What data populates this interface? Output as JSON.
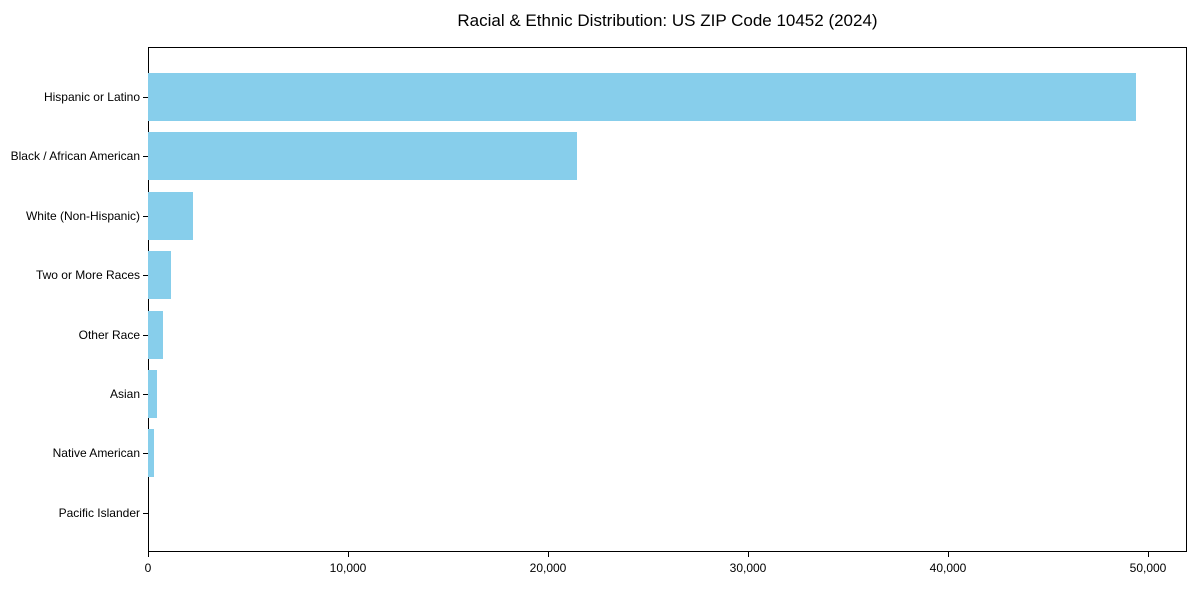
{
  "title": "Racial & Ethnic Distribution: US ZIP Code 10452 (2024)",
  "chart_data": {
    "type": "bar",
    "orientation": "horizontal",
    "title": "Racial & Ethnic Distribution: US ZIP Code 10452 (2024)",
    "xlabel": "",
    "ylabel": "",
    "categories": [
      "Hispanic or Latino",
      "Black / African American",
      "White (Non-Hispanic)",
      "Two or More Races",
      "Other Race",
      "Asian",
      "Native American",
      "Pacific Islander"
    ],
    "values": [
      49400,
      21450,
      2250,
      1150,
      750,
      460,
      300,
      0
    ],
    "xlim": [
      0,
      51950
    ],
    "x_ticks": [
      0,
      10000,
      20000,
      30000,
      40000,
      50000
    ],
    "x_tick_labels": [
      "0",
      "10,000",
      "20,000",
      "30,000",
      "40,000",
      "50,000"
    ],
    "bar_color": "#87CEEB",
    "axis_color": "#000000",
    "background_color": "#ffffff",
    "grid": false,
    "legend": null
  }
}
